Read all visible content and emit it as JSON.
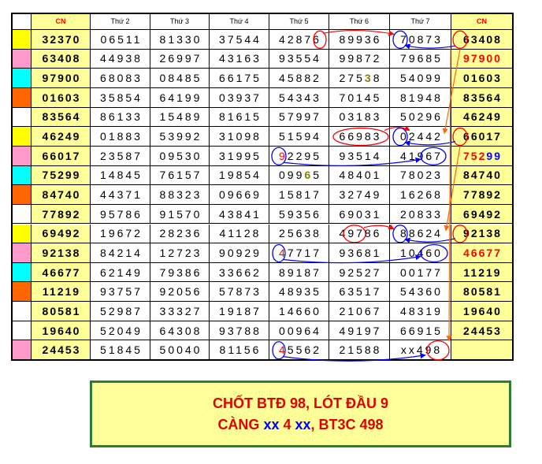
{
  "headers": [
    "CN",
    "Thứ 2",
    "Thứ 3",
    "Thứ 4",
    "Thứ 5",
    "Thứ 6",
    "Thứ 7",
    "CN"
  ],
  "row_colors": [
    "yellow",
    "pink",
    "cyan",
    "orange",
    "white",
    "yellow",
    "pink",
    "cyan",
    "orange",
    "white",
    "yellow",
    "pink",
    "cyan",
    "orange",
    "white",
    "white",
    "pink"
  ],
  "palette": {
    "yellow": "#ffff00",
    "pink": "#ff99cc",
    "cyan": "#00ffff",
    "orange": "#ff6600",
    "white": "#ffffff",
    "side_bg": "#ffff99",
    "accent_red": "#ff0000",
    "accent_blue": "#0000ff",
    "arrow_orange": "#ff6600"
  },
  "rows": [
    [
      "32370",
      "06511",
      "81330",
      "37544",
      "42876",
      "89936",
      "70873",
      "63408"
    ],
    [
      "63408",
      "44938",
      "26997",
      "43163",
      "93554",
      "99872",
      "79685",
      "97900"
    ],
    [
      "97900",
      "68083",
      "08485",
      "66175",
      "45882",
      "27538",
      "54099",
      "01603"
    ],
    [
      "01603",
      "35854",
      "64199",
      "03937",
      "54343",
      "70145",
      "81948",
      "83564"
    ],
    [
      "83564",
      "86133",
      "15489",
      "81615",
      "57997",
      "03183",
      "50296",
      "46249"
    ],
    [
      "46249",
      "01883",
      "53992",
      "31098",
      "51594",
      "66983",
      "02442",
      "66017"
    ],
    [
      "66017",
      "23587",
      "09530",
      "31995",
      "92295",
      "93514",
      "41967",
      "75299"
    ],
    [
      "75299",
      "14845",
      "76157",
      "19854",
      "09965",
      "48401",
      "78023",
      "84740"
    ],
    [
      "84740",
      "44371",
      "88323",
      "09669",
      "15817",
      "32749",
      "16268",
      "77892"
    ],
    [
      "77892",
      "95786",
      "91570",
      "43841",
      "59356",
      "69031",
      "20833",
      "69492"
    ],
    [
      "69492",
      "19672",
      "28236",
      "41128",
      "25638",
      "49786",
      "88624",
      "92138"
    ],
    [
      "92138",
      "84214",
      "12723",
      "90929",
      "47717",
      "93681",
      "10460",
      "46677"
    ],
    [
      "46677",
      "62149",
      "79386",
      "33662",
      "89187",
      "92527",
      "00177",
      "11219"
    ],
    [
      "11219",
      "93757",
      "92056",
      "57873",
      "48935",
      "63517",
      "54360",
      "80581"
    ],
    [
      "80581",
      "52987",
      "33327",
      "19187",
      "14660",
      "21067",
      "48319",
      "19640"
    ],
    [
      "19640",
      "52049",
      "64308",
      "93788",
      "00964",
      "49197",
      "66915",
      "24453"
    ],
    [
      "24453",
      "51845",
      "50040",
      "81156",
      "45562",
      "21588",
      "xx498",
      ""
    ]
  ],
  "red_side_rows": [
    1,
    6,
    11
  ],
  "note": {
    "line1": "CHỐT BTĐ 98, LÓT ĐẦU 9",
    "line2_a": "CÀNG ",
    "line2_b": "xx",
    "line2_c": " 4 ",
    "line2_d": "xx",
    "line2_e": ", BT3C 498"
  }
}
